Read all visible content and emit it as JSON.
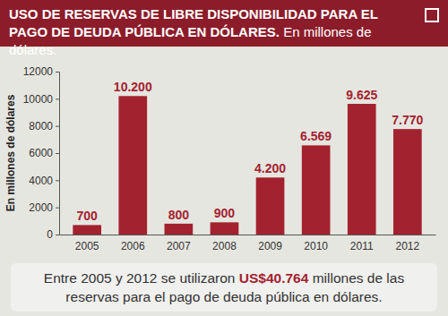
{
  "chart_data": {
    "type": "bar",
    "title": "USO DE RESERVAS DE LIBRE DISPONIBILIDAD PARA EL PAGO DE DEUDA PÚBLICA EN DÓLARES.",
    "subtitle": "En millones de dólares.",
    "y_label": "En millones de dólares",
    "categories": [
      "2005",
      "2006",
      "2007",
      "2008",
      "2009",
      "2010",
      "2011",
      "2012"
    ],
    "values": [
      700,
      10200,
      800,
      900,
      4200,
      6569,
      9625,
      7770
    ],
    "value_labels": [
      "700",
      "10.200",
      "800",
      "900",
      "4.200",
      "6.569",
      "9.625",
      "7.770"
    ],
    "color": "#a3222f",
    "ylim": [
      0,
      12000
    ],
    "yticks": [
      0,
      2000,
      4000,
      6000,
      8000,
      10000,
      12000
    ],
    "grid": false,
    "data_labels": true,
    "annotation": [
      "Entre 2005 y 2012 se utilizaron ",
      "US$40.764",
      " millones de las reservas para el pago de deuda pública en dólares."
    ]
  }
}
